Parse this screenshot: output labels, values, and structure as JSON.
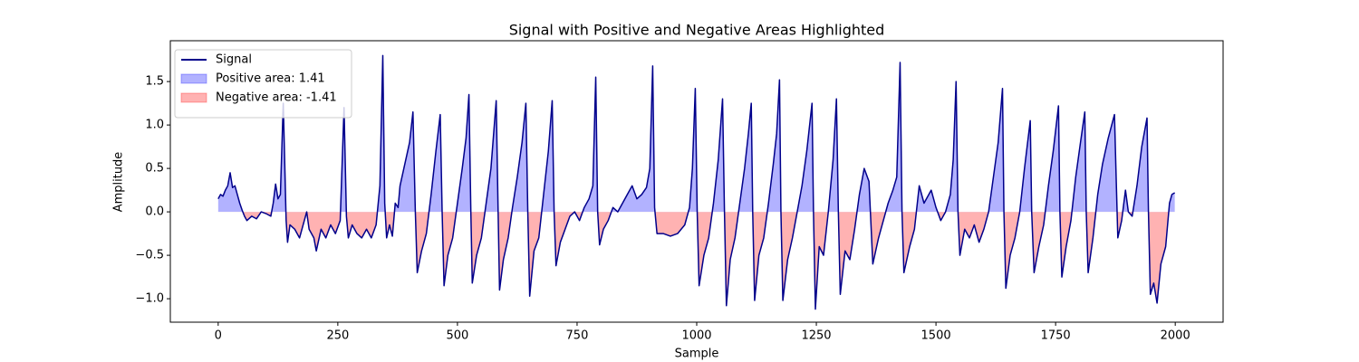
{
  "chart_data": {
    "type": "line",
    "title": "Signal with Positive and Negative Areas Highlighted",
    "xlabel": "Sample",
    "ylabel": "Amplitude",
    "xlim": [
      -100,
      2100
    ],
    "ylim": [
      -1.27,
      1.97
    ],
    "xticks": [
      0,
      250,
      500,
      750,
      1000,
      1250,
      1500,
      1750,
      2000
    ],
    "yticks": [
      {
        "value": -1,
        "label": "−1.0"
      },
      {
        "value": -0.5,
        "label": "−0.5"
      },
      {
        "value": 0,
        "label": "0.0"
      },
      {
        "value": 0.5,
        "label": "0.5"
      },
      {
        "value": 1,
        "label": "1.0"
      },
      {
        "value": 1.5,
        "label": "1.5"
      }
    ],
    "legend": "upper left",
    "x": [
      0,
      5,
      10,
      15,
      20,
      25,
      30,
      35,
      40,
      45,
      50,
      55,
      60,
      70,
      80,
      90,
      100,
      110,
      115,
      120,
      125,
      130,
      136,
      142,
      145,
      150,
      160,
      170,
      180,
      185,
      190,
      200,
      205,
      215,
      225,
      235,
      245,
      255,
      263,
      268,
      272,
      280,
      290,
      300,
      310,
      320,
      330,
      338,
      344,
      348,
      352,
      358,
      364,
      370,
      376,
      380,
      390,
      400,
      407,
      412,
      416,
      425,
      435,
      445,
      455,
      464,
      468,
      472,
      480,
      490,
      500,
      510,
      518,
      524,
      528,
      531,
      540,
      550,
      560,
      570,
      581,
      585,
      588,
      596,
      606,
      615,
      625,
      635,
      643,
      647,
      651,
      660,
      670,
      680,
      690,
      698,
      702,
      706,
      715,
      725,
      735,
      745,
      755,
      765,
      775,
      783,
      789,
      793,
      797,
      805,
      815,
      825,
      835,
      845,
      855,
      865,
      875,
      885,
      895,
      902,
      908,
      912,
      917,
      930,
      945,
      960,
      975,
      985,
      991,
      997,
      1001,
      1005,
      1015,
      1025,
      1035,
      1045,
      1054,
      1058,
      1062,
      1070,
      1080,
      1090,
      1100,
      1108,
      1114,
      1117,
      1121,
      1130,
      1140,
      1150,
      1160,
      1167,
      1173,
      1176,
      1180,
      1190,
      1200,
      1210,
      1220,
      1230,
      1241,
      1244,
      1248,
      1256,
      1265,
      1275,
      1285,
      1292,
      1296,
      1300,
      1310,
      1320,
      1330,
      1340,
      1350,
      1360,
      1368,
      1380,
      1390,
      1400,
      1410,
      1418,
      1425,
      1429,
      1433,
      1445,
      1455,
      1465,
      1475,
      1490,
      1500,
      1510,
      1520,
      1530,
      1536,
      1542,
      1546,
      1550,
      1560,
      1570,
      1580,
      1590,
      1600,
      1610,
      1620,
      1630,
      1639,
      1642,
      1646,
      1655,
      1665,
      1675,
      1685,
      1697,
      1700,
      1705,
      1715,
      1725,
      1735,
      1745,
      1756,
      1759,
      1763,
      1772,
      1782,
      1792,
      1802,
      1811,
      1814,
      1818,
      1828,
      1838,
      1848,
      1860,
      1873,
      1876,
      1880,
      1888,
      1896,
      1902,
      1910,
      1920,
      1930,
      1941,
      1944,
      1948,
      1955,
      1962,
      1970,
      1980,
      1988,
      1993,
      1999
    ],
    "series": [
      {
        "name": "Signal",
        "color": "#00008b",
        "values": [
          0.15,
          0.2,
          0.18,
          0.25,
          0.3,
          0.45,
          0.28,
          0.3,
          0.2,
          0.1,
          0.02,
          -0.05,
          -0.1,
          -0.05,
          -0.08,
          0,
          -0.02,
          -0.05,
          0.1,
          0.32,
          0.15,
          0.2,
          1.25,
          -0.1,
          -0.35,
          -0.15,
          -0.2,
          -0.3,
          -0.1,
          0,
          -0.2,
          -0.3,
          -0.45,
          -0.2,
          -0.3,
          -0.15,
          -0.25,
          -0.1,
          1.2,
          -0.05,
          -0.3,
          -0.15,
          -0.25,
          -0.3,
          -0.2,
          -0.3,
          -0.15,
          0.3,
          1.8,
          0.1,
          -0.3,
          -0.15,
          -0.28,
          0.1,
          0.05,
          0.3,
          0.55,
          0.8,
          1.15,
          0,
          -0.7,
          -0.45,
          -0.25,
          0.2,
          0.7,
          1.12,
          0,
          -0.85,
          -0.5,
          -0.3,
          0.1,
          0.5,
          0.85,
          1.35,
          0,
          -0.82,
          -0.5,
          -0.3,
          0.1,
          0.5,
          1.28,
          0,
          -0.9,
          -0.55,
          -0.3,
          0.05,
          0.4,
          0.8,
          1.25,
          0,
          -0.97,
          -0.45,
          -0.3,
          0.2,
          0.7,
          1.28,
          0,
          -0.62,
          -0.35,
          -0.2,
          -0.05,
          0,
          -0.1,
          0.05,
          0.15,
          0.3,
          1.55,
          0,
          -0.38,
          -0.2,
          -0.1,
          0.05,
          0,
          0.1,
          0.2,
          0.3,
          0.15,
          0.2,
          0.28,
          0.5,
          1.68,
          0.05,
          -0.25,
          -0.25,
          -0.28,
          -0.25,
          -0.15,
          0.05,
          0.5,
          1.42,
          0,
          -0.85,
          -0.5,
          -0.3,
          0.1,
          0.6,
          1.3,
          0,
          -1.08,
          -0.55,
          -0.3,
          0.1,
          0.5,
          0.9,
          1.25,
          0,
          -1.02,
          -0.5,
          -0.3,
          0.1,
          0.55,
          0.9,
          1.52,
          0,
          -1.02,
          -0.55,
          -0.3,
          0,
          0.3,
          0.7,
          1.25,
          0,
          -1.12,
          -0.4,
          -0.5,
          0,
          0.6,
          1.3,
          0,
          -0.95,
          -0.45,
          -0.55,
          -0.2,
          0.2,
          0.5,
          0.35,
          -0.6,
          -0.3,
          -0.1,
          0.1,
          0.25,
          0.4,
          1.72,
          0,
          -0.7,
          -0.4,
          -0.2,
          0.3,
          0.1,
          0.25,
          0.05,
          -0.1,
          0,
          0.2,
          0.6,
          1.5,
          0,
          -0.5,
          -0.2,
          -0.3,
          -0.15,
          -0.35,
          -0.2,
          0,
          0.4,
          0.8,
          1.42,
          0,
          -0.88,
          -0.5,
          -0.3,
          0,
          0.5,
          1.05,
          0,
          -0.7,
          -0.4,
          -0.15,
          0.3,
          0.7,
          1.22,
          0,
          -0.75,
          -0.4,
          -0.1,
          0.4,
          0.8,
          1.15,
          0,
          -0.7,
          -0.3,
          0.2,
          0.55,
          0.85,
          1.12,
          0.5,
          -0.3,
          -0.1,
          0.25,
          0,
          -0.05,
          0.3,
          0.75,
          1.08,
          0,
          -0.95,
          -0.82,
          -1.05,
          -0.6,
          -0.4,
          0.1,
          0.2,
          0.22
        ]
      }
    ],
    "fills": [
      {
        "name": "Positive area: 1.41",
        "color": "#0000ff",
        "alpha": 0.3,
        "where": "above"
      },
      {
        "name": "Negative area: -1.41",
        "color": "#ff0000",
        "alpha": 0.3,
        "where": "below"
      }
    ]
  }
}
